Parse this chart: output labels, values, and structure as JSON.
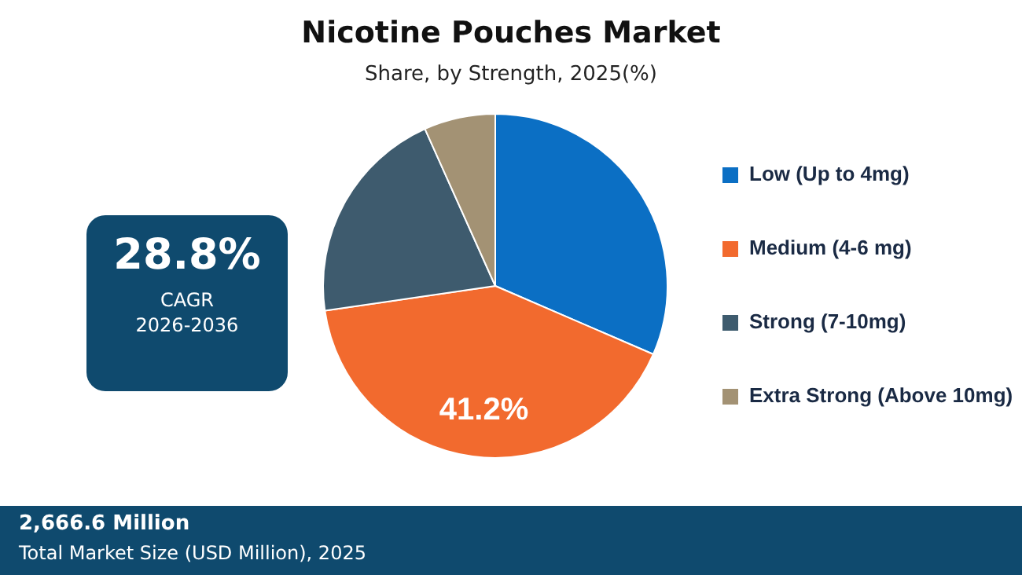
{
  "chart_data": {
    "type": "pie",
    "title": "Nicotine Pouches Market",
    "subtitle": "Share, by Strength, 2025(%)",
    "categories": [
      "Low (Up to 4mg)",
      "Medium (4-6 mg)",
      "Strong (7-10mg)",
      "Extra Strong (Above 10mg)"
    ],
    "values": [
      31.5,
      41.2,
      20.6,
      6.7
    ],
    "colors": [
      "#0b6fc4",
      "#f26a2e",
      "#3e5b6e",
      "#a39274"
    ],
    "value_labels": [
      null,
      "41.2%",
      null,
      null
    ],
    "legend": "right",
    "annotations": [
      "28.8%",
      "CAGR",
      "2026-2036",
      "2,666.6 Million",
      "Total Market Size (USD Million), 2025"
    ]
  }
}
